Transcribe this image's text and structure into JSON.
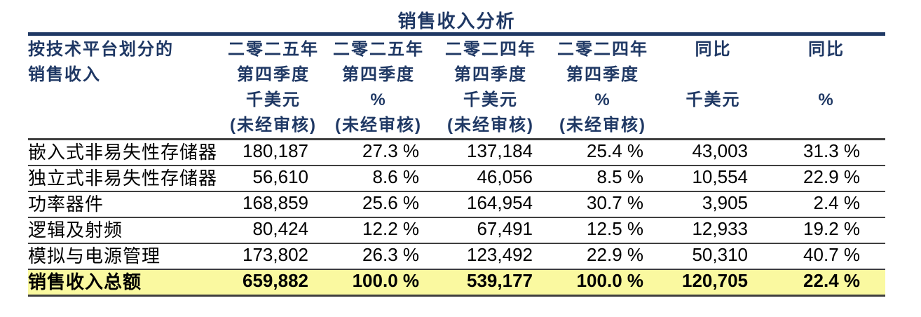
{
  "title": "销售收入分析",
  "colors": {
    "header_navy": "#1F3864",
    "border_dark": "#3F3F3F",
    "total_highlight": "#FAF9A0",
    "body_text": "#000000"
  },
  "table": {
    "row_header_lines": [
      "按技术平台划分的",
      "销售收入"
    ],
    "columns": [
      {
        "lines": [
          "二零二五年",
          "第四季度",
          "千美元",
          "(未经审核)"
        ]
      },
      {
        "lines": [
          "二零二五年",
          "第四季度",
          "%",
          "(未经审核)"
        ]
      },
      {
        "lines": [
          "二零二四年",
          "第四季度",
          "千美元",
          "(未经审核)"
        ]
      },
      {
        "lines": [
          "二零二四年",
          "第四季度",
          "%",
          "(未经审核)"
        ]
      },
      {
        "lines": [
          "同比",
          "",
          "千美元",
          ""
        ]
      },
      {
        "lines": [
          "同比",
          "",
          "%",
          ""
        ]
      }
    ],
    "rows": [
      {
        "label": "嵌入式非易失性存储器",
        "values": [
          "180,187",
          "27.3 %",
          "137,184",
          "25.4 %",
          "43,003",
          "31.3 %"
        ]
      },
      {
        "label": "独立式非易失性存储器",
        "values": [
          "56,610",
          "8.6 %",
          "46,056",
          "8.5 %",
          "10,554",
          "22.9 %"
        ]
      },
      {
        "label": "功率器件",
        "values": [
          "168,859",
          "25.6 %",
          "164,954",
          "30.7 %",
          "3,905",
          "2.4 %"
        ]
      },
      {
        "label": "逻辑及射频",
        "values": [
          "80,424",
          "12.2 %",
          "67,491",
          "12.5 %",
          "12,933",
          "19.2 %"
        ]
      },
      {
        "label": "模拟与电源管理",
        "values": [
          "173,802",
          "26.3 %",
          "123,492",
          "22.9 %",
          "50,310",
          "40.7 %"
        ]
      }
    ],
    "total_row": {
      "label": "销售收入总额",
      "values": [
        "659,882",
        "100.0 %",
        "539,177",
        "100.0 %",
        "120,705",
        "22.4 %"
      ]
    }
  }
}
